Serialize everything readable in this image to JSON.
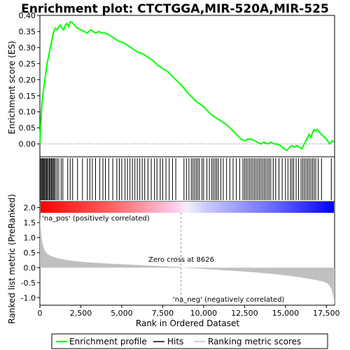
{
  "chart_data": {
    "type": "line",
    "title": "Enrichment plot: CTCTGGA,MIR-520A,MIR-525",
    "xlabel": "Rank in Ordered Dataset",
    "ylabel_top": "Enrichment score (ES)",
    "ylabel_bottom": "Ranked list metric (PreRanked)",
    "xlim": [
      0,
      18000
    ],
    "ylim_top": [
      -0.04,
      0.4
    ],
    "ylim_bottom": [
      -1.25,
      2.2
    ],
    "x_ticks": [
      0,
      2500,
      5000,
      7500,
      10000,
      12500,
      15000,
      17500
    ],
    "x_tick_labels": [
      "0",
      "2,500",
      "5,000",
      "7,500",
      "10,000",
      "12,500",
      "15,000",
      "17,500"
    ],
    "y_ticks_top": [
      0.0,
      0.05,
      0.1,
      0.15,
      0.2,
      0.25,
      0.3,
      0.35,
      0.4
    ],
    "y_tick_labels_top": [
      "0.00",
      "0.05",
      "0.10",
      "0.15",
      "0.20",
      "0.25",
      "0.30",
      "0.35",
      "0.40"
    ],
    "y_ticks_bottom": [
      -1.0,
      -0.5,
      0.0,
      0.5,
      1.0,
      1.5,
      2.0
    ],
    "y_tick_labels_bottom": [
      "-1.0",
      "-0.5",
      "0.0",
      "0.5",
      "1.0",
      "1.5",
      "2.0"
    ],
    "series": [
      {
        "name": "Enrichment profile",
        "color": "#00ff00",
        "x": [
          0,
          60,
          120,
          200,
          280,
          360,
          440,
          520,
          600,
          680,
          760,
          850,
          950,
          1050,
          1150,
          1250,
          1350,
          1450,
          1550,
          1650,
          1750,
          1850,
          1950,
          2100,
          2300,
          2500,
          2700,
          2900,
          3100,
          3250,
          3400,
          3600,
          3800,
          4000,
          4200,
          4500,
          4800,
          5100,
          5400,
          5700,
          6000,
          6300,
          6600,
          6900,
          7200,
          7500,
          7800,
          8100,
          8400,
          8700,
          9000,
          9300,
          9600,
          9900,
          10200,
          10500,
          10800,
          11100,
          11400,
          11700,
          12000,
          12300,
          12500,
          12700,
          12900,
          13100,
          13300,
          13500,
          13700,
          13900,
          14100,
          14300,
          14500,
          14700,
          14900,
          15100,
          15250,
          15400,
          15550,
          15700,
          15850,
          16000,
          16150,
          16250,
          16350,
          16450,
          16550,
          16650,
          16750,
          16850,
          16950,
          17100,
          17300,
          17500,
          17700,
          17850,
          17950
        ],
        "y": [
          0.0,
          0.07,
          0.12,
          0.16,
          0.19,
          0.22,
          0.25,
          0.27,
          0.29,
          0.31,
          0.33,
          0.35,
          0.36,
          0.355,
          0.365,
          0.37,
          0.36,
          0.355,
          0.37,
          0.375,
          0.365,
          0.38,
          0.38,
          0.37,
          0.36,
          0.355,
          0.35,
          0.345,
          0.355,
          0.35,
          0.345,
          0.35,
          0.345,
          0.345,
          0.34,
          0.33,
          0.32,
          0.315,
          0.305,
          0.295,
          0.285,
          0.28,
          0.27,
          0.26,
          0.245,
          0.235,
          0.225,
          0.21,
          0.195,
          0.18,
          0.16,
          0.145,
          0.13,
          0.12,
          0.105,
          0.09,
          0.08,
          0.07,
          0.06,
          0.045,
          0.03,
          0.015,
          0.01,
          0.015,
          0.015,
          0.01,
          0.005,
          0.0,
          0.005,
          0.0,
          0.005,
          0.0,
          0.0,
          -0.005,
          -0.015,
          -0.02,
          -0.01,
          -0.005,
          -0.01,
          -0.005,
          -0.01,
          -0.015,
          0.0,
          0.01,
          0.02,
          0.03,
          0.02,
          0.035,
          0.045,
          0.04,
          0.045,
          0.035,
          0.025,
          0.015,
          0.0,
          0.01,
          0.005
        ]
      }
    ],
    "hits": [
      20,
      80,
      130,
      180,
      230,
      290,
      340,
      400,
      450,
      520,
      580,
      640,
      700,
      760,
      820,
      880,
      950,
      1050,
      1150,
      1300,
      1400,
      1700,
      1850,
      2000,
      2300,
      2600,
      2900,
      3050,
      3200,
      3400,
      3650,
      3850,
      4000,
      4200,
      4450,
      4700,
      4850,
      5000,
      5200,
      5350,
      5500,
      5650,
      5800,
      5950,
      6100,
      6250,
      6400,
      6600,
      6800,
      7000,
      7150,
      7350,
      7500,
      7700,
      7900,
      8100,
      8300,
      8800,
      8950,
      9100,
      9250,
      9350,
      9450,
      9550,
      9650,
      9750,
      9900,
      10000,
      10200,
      10350,
      10500,
      10600,
      10700,
      10800,
      10900,
      11050,
      11200,
      11400,
      11600,
      11800,
      12000,
      12200,
      12400,
      12500,
      12600,
      12700,
      12800,
      12900,
      13000,
      13100,
      13200,
      13300,
      13400,
      13500,
      13600,
      13700,
      13800,
      13900,
      14000,
      14100,
      14250,
      14400,
      14600,
      14800,
      15000,
      15150,
      15300,
      15400,
      15500,
      15650,
      15800,
      15950,
      16050,
      16150,
      16250,
      16350,
      16450,
      16550,
      16650,
      16750,
      16850,
      17000,
      17200,
      17800
    ],
    "hit_color": "#000000",
    "metric_color": "#c0c0c0",
    "zero_cross": 8626,
    "zero_cross_label": "Zero cross at 8626",
    "pos_label": "'na_pos' (positively correlated)",
    "neg_label": "'na_neg' (negatively correlated)",
    "pos_label_color": "#ff0000",
    "neg_label_color": "#0000ff",
    "legend": [
      {
        "label": "Enrichment profile",
        "color": "#00ff00"
      },
      {
        "label": "Hits",
        "color": "#000000"
      },
      {
        "label": "Ranking metric scores",
        "color": "#c0c0c0"
      }
    ]
  }
}
